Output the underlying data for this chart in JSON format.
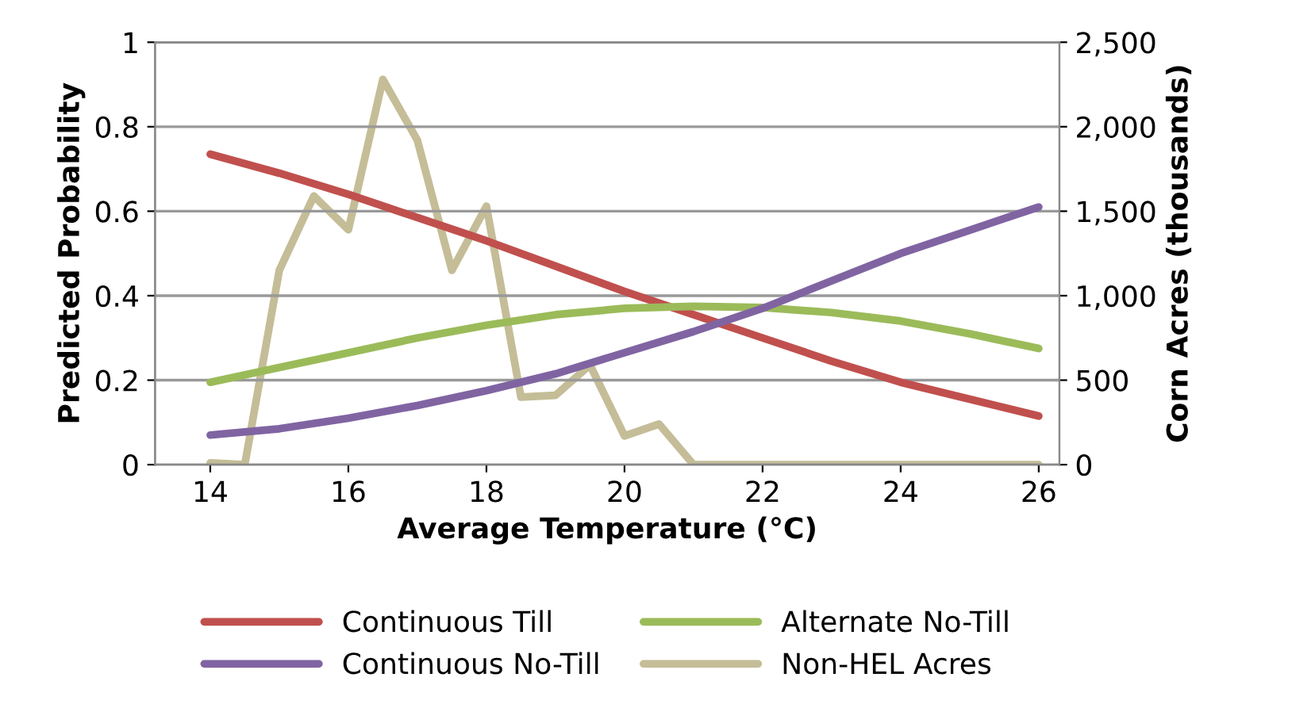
{
  "chart_data": {
    "type": "line",
    "xlabel": "Average Temperature (°C)",
    "ylabel": "Predicted Probability",
    "y2label": "Corn Acres (thousands)",
    "xlim": [
      13.2,
      26.3
    ],
    "xticks": [
      14,
      16,
      18,
      20,
      22,
      24,
      26
    ],
    "ylim": [
      0,
      1
    ],
    "yticks": [
      0,
      0.2,
      0.4,
      0.6,
      0.8,
      1
    ],
    "y2lim": [
      0,
      2500
    ],
    "y2ticks": [
      0,
      {
        "value": 500,
        "label": "500"
      },
      {
        "value": 1000,
        "label": "1,000"
      },
      {
        "value": 1500,
        "label": "1,500"
      },
      {
        "value": 2000,
        "label": "2,000"
      },
      {
        "value": 2500,
        "label": "2,500"
      }
    ],
    "grid": "y",
    "legend": "bottom",
    "marker": "none",
    "line_style": "solid",
    "series": [
      {
        "name": "Continuous Till",
        "color": "#c0504d",
        "x": [
          14,
          15,
          16,
          17,
          18,
          19,
          20,
          21,
          22,
          23,
          24,
          25,
          26
        ],
        "values": [
          0.735,
          0.69,
          0.64,
          0.585,
          0.53,
          0.47,
          0.41,
          0.355,
          0.3,
          0.245,
          0.195,
          0.155,
          0.115
        ]
      },
      {
        "name": "Alternate No-Till",
        "color": "#9bbb59",
        "x": [
          14,
          15,
          16,
          17,
          18,
          19,
          20,
          21,
          22,
          23,
          24,
          25,
          26
        ],
        "values": [
          0.195,
          0.23,
          0.265,
          0.3,
          0.33,
          0.355,
          0.37,
          0.375,
          0.372,
          0.36,
          0.34,
          0.31,
          0.275
        ]
      },
      {
        "name": "Continuous No-Till",
        "color": "#8064a2",
        "x": [
          14,
          15,
          16,
          17,
          18,
          19,
          20,
          21,
          22,
          23,
          24,
          25,
          26
        ],
        "values": [
          0.07,
          0.085,
          0.11,
          0.14,
          0.175,
          0.215,
          0.265,
          0.315,
          0.37,
          0.435,
          0.5,
          0.555,
          0.61
        ]
      },
      {
        "name": "Non-HEL Acres",
        "color": "#c4bd97",
        "axis": "y2",
        "x": [
          14,
          14.5,
          15,
          15.5,
          16,
          16.5,
          17,
          17.5,
          18,
          18.5,
          19,
          19.5,
          20,
          20.5,
          21,
          21.5,
          22,
          22.5,
          23,
          23.5,
          24,
          24.5,
          25,
          25.5,
          26
        ],
        "values": [
          10,
          0,
          1150,
          1590,
          1390,
          2280,
          1920,
          1150,
          1530,
          400,
          410,
          590,
          170,
          240,
          0,
          0,
          0,
          0,
          0,
          0,
          0,
          0,
          0,
          0,
          0
        ]
      }
    ]
  }
}
